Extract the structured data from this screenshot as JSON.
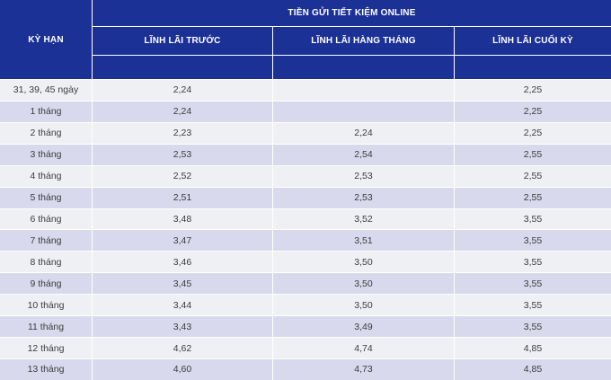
{
  "colors": {
    "header_bg": "#1c3196",
    "header_text": "#ffffff",
    "row_light_bg": "#eff0f3",
    "row_alt_bg": "#d8d9ec",
    "body_text": "#3c3c3c",
    "grid_line": "#ffffff"
  },
  "chart_data": {
    "type": "table",
    "title": "TIỀN GỬI TIẾT KIỆM ONLINE",
    "corner_header": "KỲ HẠN",
    "columns": [
      "LĨNH LÃI TRƯỚC",
      "LĨNH LÃI HÀNG THÁNG",
      "LĨNH LÃI CUỐI KỲ"
    ],
    "unit": "percent, comma decimal separator",
    "rows": [
      [
        "31, 39, 45 ngày",
        "2,24",
        "",
        "2,25"
      ],
      [
        "1 tháng",
        "2,24",
        "",
        "2,25"
      ],
      [
        "2 tháng",
        "2,23",
        "2,24",
        "2,25"
      ],
      [
        "3 tháng",
        "2,53",
        "2,54",
        "2,55"
      ],
      [
        "4 tháng",
        "2,52",
        "2,53",
        "2,55"
      ],
      [
        "5 tháng",
        "2,51",
        "2,53",
        "2,55"
      ],
      [
        "6 tháng",
        "3,48",
        "3,52",
        "3,55"
      ],
      [
        "7 tháng",
        "3,47",
        "3,51",
        "3,55"
      ],
      [
        "8 tháng",
        "3,46",
        "3,50",
        "3,55"
      ],
      [
        "9 tháng",
        "3,45",
        "3,50",
        "3,55"
      ],
      [
        "10 tháng",
        "3,44",
        "3,50",
        "3,55"
      ],
      [
        "11 tháng",
        "3,43",
        "3,49",
        "3,55"
      ],
      [
        "12 tháng",
        "4,62",
        "4,74",
        "4,85"
      ],
      [
        "13 tháng",
        "4,60",
        "4,73",
        "4,85"
      ]
    ]
  }
}
